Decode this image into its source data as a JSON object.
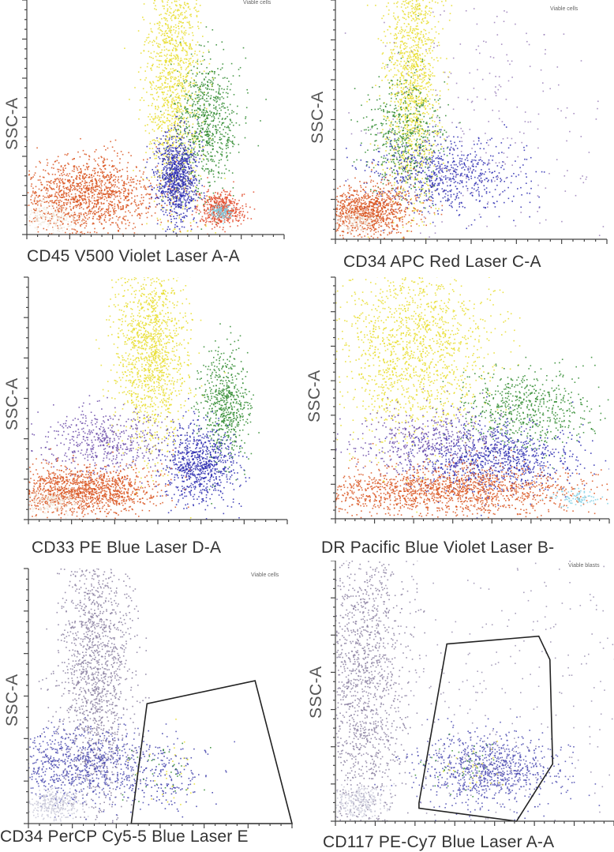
{
  "chart_data": [
    {
      "type": "scatter",
      "ylabel": "SSC-A",
      "xlabel": "CD45 V500 Violet Laser A-A",
      "annotation": "Viable cells",
      "populations": [
        {
          "color": "#e8dd2a",
          "cx": 0.57,
          "cy": 0.68,
          "sx": 0.055,
          "sy": 0.32,
          "n": 1400
        },
        {
          "color": "#2e8a2e",
          "cx": 0.7,
          "cy": 0.48,
          "sx": 0.06,
          "sy": 0.14,
          "n": 700
        },
        {
          "color": "#d9531e",
          "cx": 0.23,
          "cy": 0.17,
          "sx": 0.14,
          "sy": 0.08,
          "n": 1400
        },
        {
          "color": "#2a2ab0",
          "cx": 0.58,
          "cy": 0.25,
          "sx": 0.04,
          "sy": 0.09,
          "n": 900
        },
        {
          "color": "#e24a2a",
          "cx": 0.75,
          "cy": 0.11,
          "sx": 0.045,
          "sy": 0.035,
          "n": 500
        },
        {
          "color": "#7fd0e6",
          "cx": 0.75,
          "cy": 0.1,
          "sx": 0.02,
          "sy": 0.015,
          "n": 120
        },
        {
          "color": "#f0e8dc",
          "cx": 0.08,
          "cy": 0.08,
          "sx": 0.05,
          "sy": 0.03,
          "n": 200
        }
      ]
    },
    {
      "type": "scatter",
      "ylabel": "SSC-A",
      "xlabel": "CD34 APC Red Laser C-A",
      "annotation": "Viable cells",
      "populations": [
        {
          "color": "#e8dd2a",
          "cx": 0.28,
          "cy": 0.7,
          "sx": 0.05,
          "sy": 0.3,
          "n": 1400
        },
        {
          "color": "#2e8a2e",
          "cx": 0.25,
          "cy": 0.45,
          "sx": 0.07,
          "sy": 0.12,
          "n": 500
        },
        {
          "color": "#2a2ab0",
          "cx": 0.4,
          "cy": 0.27,
          "sx": 0.14,
          "sy": 0.08,
          "n": 700
        },
        {
          "color": "#d9531e",
          "cx": 0.12,
          "cy": 0.12,
          "sx": 0.08,
          "sy": 0.05,
          "n": 1000
        },
        {
          "color": "#9a7fb8",
          "cx": 0.55,
          "cy": 0.45,
          "sx": 0.25,
          "sy": 0.3,
          "n": 300
        },
        {
          "color": "#f0e8dc",
          "cx": 0.08,
          "cy": 0.08,
          "sx": 0.04,
          "sy": 0.025,
          "n": 150
        }
      ]
    },
    {
      "type": "scatter",
      "ylabel": "SSC-A",
      "xlabel": "CD33 PE Blue Laser D-A",
      "annotation": "",
      "populations": [
        {
          "color": "#e8dd2a",
          "cx": 0.47,
          "cy": 0.7,
          "sx": 0.07,
          "sy": 0.22,
          "n": 1400
        },
        {
          "color": "#2e8a2e",
          "cx": 0.76,
          "cy": 0.47,
          "sx": 0.045,
          "sy": 0.12,
          "n": 600
        },
        {
          "color": "#2a2ab0",
          "cx": 0.66,
          "cy": 0.23,
          "sx": 0.07,
          "sy": 0.08,
          "n": 800
        },
        {
          "color": "#6a4aa8",
          "cx": 0.3,
          "cy": 0.33,
          "sx": 0.12,
          "sy": 0.07,
          "n": 500
        },
        {
          "color": "#d9531e",
          "cx": 0.2,
          "cy": 0.12,
          "sx": 0.15,
          "sy": 0.05,
          "n": 1400
        },
        {
          "color": "#f0e8dc",
          "cx": 0.09,
          "cy": 0.08,
          "sx": 0.05,
          "sy": 0.025,
          "n": 200
        }
      ]
    },
    {
      "type": "scatter",
      "ylabel": "SSC-A",
      "xlabel": "DR Pacific Blue Violet Laser B-",
      "annotation": "",
      "populations": [
        {
          "color": "#e8dd2a",
          "cx": 0.28,
          "cy": 0.7,
          "sx": 0.14,
          "sy": 0.2,
          "n": 1500
        },
        {
          "color": "#2e8a2e",
          "cx": 0.7,
          "cy": 0.46,
          "sx": 0.12,
          "sy": 0.08,
          "n": 600
        },
        {
          "color": "#2a2ab0",
          "cx": 0.58,
          "cy": 0.25,
          "sx": 0.15,
          "sy": 0.07,
          "n": 900
        },
        {
          "color": "#6a4aa8",
          "cx": 0.35,
          "cy": 0.32,
          "sx": 0.14,
          "sy": 0.07,
          "n": 500
        },
        {
          "color": "#d9531e",
          "cx": 0.38,
          "cy": 0.12,
          "sx": 0.28,
          "sy": 0.05,
          "n": 1600
        },
        {
          "color": "#7fd0e6",
          "cx": 0.88,
          "cy": 0.09,
          "sx": 0.04,
          "sy": 0.02,
          "n": 80
        }
      ]
    },
    {
      "type": "scatter",
      "ylabel": "SSC-A",
      "xlabel": "CD34 PerCP Cy5-5 Blue Laser E",
      "annotation": "Viable cells",
      "gate": [
        [
          0.45,
          0.47
        ],
        [
          0.86,
          0.56
        ],
        [
          1.0,
          0.0
        ],
        [
          0.39,
          0.0
        ]
      ],
      "populations": [
        {
          "color": "#8a7fa0",
          "cx": 0.25,
          "cy": 0.62,
          "sx": 0.07,
          "sy": 0.3,
          "n": 1600
        },
        {
          "color": "#4a4ab0",
          "cx": 0.2,
          "cy": 0.23,
          "sx": 0.15,
          "sy": 0.07,
          "n": 900
        },
        {
          "color": "#c8c8d8",
          "cx": 0.09,
          "cy": 0.08,
          "sx": 0.06,
          "sy": 0.03,
          "n": 300
        },
        {
          "color": "#3a3aa8",
          "cx": 0.52,
          "cy": 0.2,
          "sx": 0.08,
          "sy": 0.07,
          "n": 150
        },
        {
          "color": "#2e8a2e",
          "cx": 0.5,
          "cy": 0.22,
          "sx": 0.07,
          "sy": 0.07,
          "n": 40
        },
        {
          "color": "#e8dd2a",
          "cx": 0.55,
          "cy": 0.2,
          "sx": 0.07,
          "sy": 0.07,
          "n": 25
        }
      ]
    },
    {
      "type": "scatter",
      "ylabel": "SSC-A",
      "xlabel": "CD117 PE-Cy7 Blue Laser A-A",
      "annotation": "Viable blasts",
      "gate": [
        [
          0.4,
          0.68
        ],
        [
          0.73,
          0.71
        ],
        [
          0.77,
          0.62
        ],
        [
          0.78,
          0.22
        ],
        [
          0.65,
          0.0
        ],
        [
          0.3,
          0.05
        ],
        [
          0.3,
          0.07
        ]
      ],
      "populations": [
        {
          "color": "#8a7fa0",
          "cx": 0.1,
          "cy": 0.55,
          "sx": 0.08,
          "sy": 0.35,
          "n": 1600
        },
        {
          "color": "#4a4ab0",
          "cx": 0.55,
          "cy": 0.2,
          "sx": 0.13,
          "sy": 0.07,
          "n": 900
        },
        {
          "color": "#c8c8d8",
          "cx": 0.08,
          "cy": 0.08,
          "sx": 0.05,
          "sy": 0.03,
          "n": 250
        },
        {
          "color": "#9a8fb0",
          "cx": 0.6,
          "cy": 0.5,
          "sx": 0.35,
          "sy": 0.35,
          "n": 350
        },
        {
          "color": "#2e8a2e",
          "cx": 0.45,
          "cy": 0.2,
          "sx": 0.07,
          "sy": 0.05,
          "n": 40
        },
        {
          "color": "#e8dd2a",
          "cx": 0.5,
          "cy": 0.2,
          "sx": 0.07,
          "sy": 0.05,
          "n": 25
        }
      ]
    }
  ]
}
